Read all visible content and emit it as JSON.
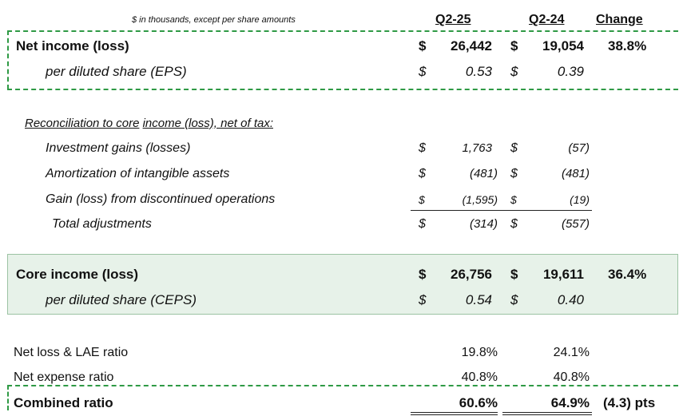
{
  "header": {
    "note": "$ in thousands, except per share amounts",
    "col_q225": "Q2-25",
    "col_q224": "Q2-24",
    "col_change": "Change"
  },
  "net_income": {
    "label": "Net income (loss)",
    "cur_sym": "$",
    "q225": "26,442",
    "q224_sym": "$",
    "q224": "19,054",
    "change": "38.8%"
  },
  "eps": {
    "label": "per diluted share (EPS)",
    "cur_sym": "$",
    "q225": "0.53",
    "q224_sym": "$",
    "q224": "0.39"
  },
  "reconciliation": {
    "heading_part1": "Reconciliation to core",
    "heading_part2": "income (loss), net of tax:",
    "rows": [
      {
        "label": "Investment gains (losses)",
        "cur_sym": "$",
        "q225": "1,763",
        "q224_sym": "$",
        "q224": "(57)"
      },
      {
        "label": "Amortization of intangible assets",
        "cur_sym": "$",
        "q225": "(481)",
        "q224_sym": "$",
        "q224": "(481)"
      },
      {
        "label": "Gain (loss) from discontinued operations",
        "cur_sym": "$",
        "q225": "(1,595)",
        "q224_sym": "$",
        "q224": "(19)"
      }
    ],
    "total": {
      "label": "Total adjustments",
      "cur_sym": "$",
      "q225": "(314)",
      "q224_sym": "$",
      "q224": "(557)"
    }
  },
  "core_income": {
    "label": "Core income (loss)",
    "cur_sym": "$",
    "q225": "26,756",
    "q224_sym": "$",
    "q224": "19,611",
    "change": "36.4%"
  },
  "ceps": {
    "label": "per diluted share (CEPS)",
    "cur_sym": "$",
    "q225": "0.54",
    "q224_sym": "$",
    "q224": "0.40"
  },
  "ratios": {
    "loss_lae": {
      "label": "Net loss & LAE ratio",
      "q225": "19.8%",
      "q224": "24.1%"
    },
    "expense": {
      "label": "Net expense ratio",
      "q225": "40.8%",
      "q224": "40.8%"
    },
    "combined": {
      "label": "Combined ratio",
      "q225": "60.6%",
      "q224": "64.9%",
      "change": "(4.3) pts"
    }
  },
  "colors": {
    "dash_green": "#2f9a45",
    "core_fill": "#e7f2e9"
  }
}
